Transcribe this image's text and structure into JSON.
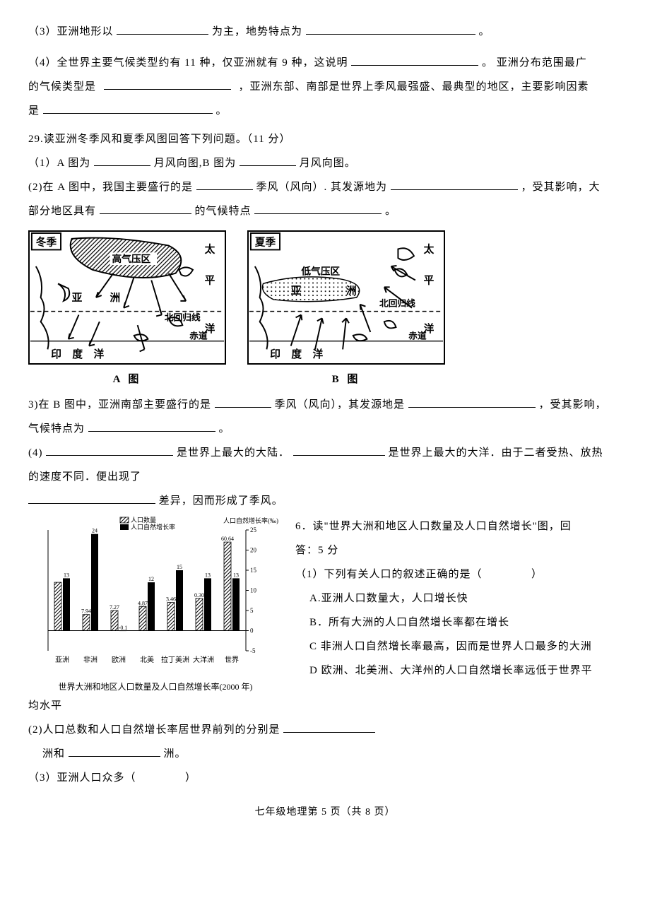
{
  "q3": {
    "prefix": "（3）亚洲地形以",
    "mid": "为主，地势特点为",
    "end": "。"
  },
  "q4": {
    "l1a": "（4）全世界主要气候类型约有 11 种，仅亚洲就有 9 种，这说明",
    "l1b": "。 亚洲分布范围最广",
    "l2a": "的气候类型是",
    "l2b": "，亚洲东部、南部是世界上季风最强盛、最典型的地区，主要影响因素",
    "l3a": "是",
    "l3b": "。"
  },
  "q29": {
    "title": "29.读亚洲冬季风和夏季风图回答下列问题。（11 分）",
    "p1a": "（1）A 图为",
    "p1b": "月风向图,B 图为",
    "p1c": "月风向图。",
    "p2a": "(2)在 A 图中，我国主要盛行的是",
    "p2b": "季风（风向）. 其发源地为",
    "p2c": "，受其影响，大",
    "p2d": "部分地区具有",
    "p2e": "的气候特点",
    "p2f": "。",
    "p3a": "3)在 B 图中，亚洲南部主要盛行的是",
    "p3b": "季风（风向），其发源地是",
    "p3c": "，受其影响，",
    "p3d": "气候特点为",
    "p3e": "。",
    "p4a": "(4)",
    "p4b": "是世界上最大的大陆．",
    "p4c": "是世界上最大的大洋．由于二者受热、放热",
    "p4d": "的速度不同．便出现了",
    "p4e": "差异，因而形成了季风。"
  },
  "map": {
    "labelA": "A 图",
    "labelB": "B 图",
    "winter": "冬季",
    "summer": "夏季",
    "highPressure": "高气压区",
    "lowPressure": "低气压区",
    "asia": "亚",
    "continent": "洲",
    "pacific1": "太",
    "pacific2": "平",
    "pacific3": "洋",
    "tropic": "北回归线",
    "equator": "赤道",
    "indian": "印 度 洋"
  },
  "q6": {
    "title": "6．读\"世界大洲和地区人口数量及人口自然增长\"图，回",
    "title2": "答：5 分",
    "p1": "（1）下列有关人口的叙述正确的是（",
    "p1end": "）",
    "optA": "A.亚洲人口数量大，人口增长快",
    "optB": "B．所有大洲的人口自然增长率都在增长",
    "optC": "C 非洲人口自然增长率最高，因而是世界人口最多的大洲",
    "optD": "D 欧洲、北美洲、大洋州的人口自然增长率远低于世界平",
    "optDcont": "均水平",
    "p2a": "(2)人口总数和人口自然增长率居世界前列的分别是",
    "p2b": "洲和",
    "p2c": "洲。",
    "p3a": "（3）亚洲人口众多（",
    "p3b": "）"
  },
  "chart": {
    "caption": "世界大洲和地区人口数量及人口自然增长率(2000 年)",
    "legendQty": "人口数量",
    "legendRate": "人口自然增长率",
    "yRightLabel": "人口自然增长率(‰)",
    "categories": [
      "亚洲",
      "非洲",
      "欧洲",
      "北美",
      "拉丁美洲",
      "大洋洲",
      "世界"
    ],
    "growth_values": [
      13,
      24,
      -0.1,
      12,
      15,
      13,
      13
    ],
    "growth_labels": [
      "13",
      "24",
      "-0.1",
      "12",
      "15",
      "13",
      "13"
    ],
    "pop_labels": [
      "",
      "7.94",
      "7.27",
      "4.87",
      "3.46",
      "0.30",
      "60.64"
    ],
    "yticks": [
      -5,
      0,
      5,
      10,
      15,
      20,
      25
    ],
    "ylim_top": 25,
    "ylim_bottom": -5,
    "bar_fill": "#000000",
    "hatch_stroke": "#000000",
    "axis_color": "#000000",
    "font_size": 9
  },
  "footer": "七年级地理第 5 页（共 8 页）"
}
